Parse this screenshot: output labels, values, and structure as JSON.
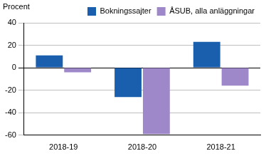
{
  "chart_data": {
    "type": "bar",
    "y_label": "Procent",
    "categories": [
      "2018-19",
      "2018-20",
      "2018-21"
    ],
    "series": [
      {
        "name": "Bokningssajter",
        "color": "#1a5fae",
        "values": [
          11,
          -26,
          23
        ]
      },
      {
        "name": "ÅSUB, alla anläggningar",
        "color": "#9e88c9",
        "values": [
          -4,
          -59,
          -16
        ]
      }
    ],
    "ylim": [
      -60,
      40
    ],
    "yticks": [
      -60,
      -40,
      -20,
      0,
      20,
      40
    ],
    "grid": true,
    "legend": "top"
  }
}
